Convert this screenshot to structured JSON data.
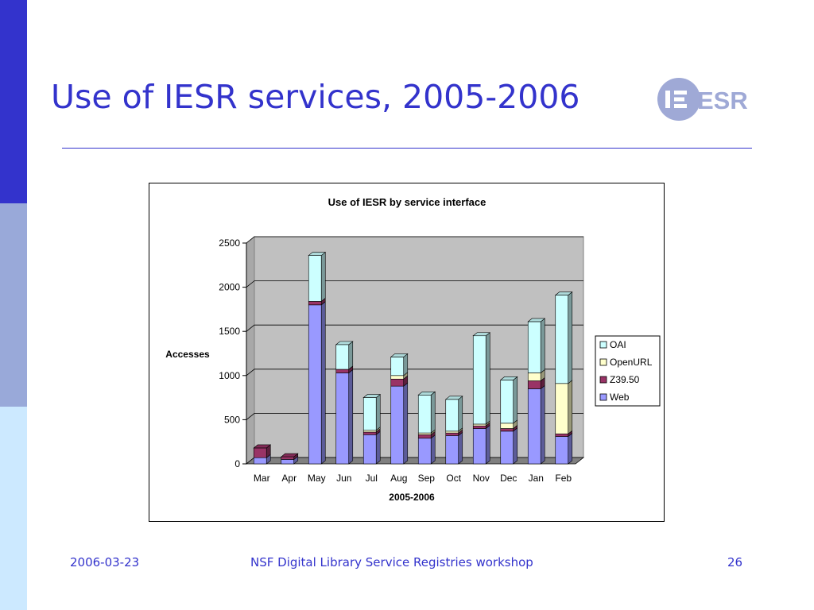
{
  "slide": {
    "title": "Use of IESR services, 2005-2006",
    "logo_text": "ESR"
  },
  "footer": {
    "date": "2006-03-23",
    "center": "NSF Digital Library Service Registries workshop",
    "page": "26"
  },
  "colors": {
    "accent": "#3333cc",
    "sidebar": [
      "#3333cc",
      "#99a9d9",
      "#cce9ff"
    ],
    "plot_wall": "#c0c0c0",
    "floor": "#808080"
  },
  "chart_data": {
    "type": "bar",
    "stacked": true,
    "three_d": true,
    "title": "Use of IESR by service interface",
    "xlabel": "2005-2006",
    "ylabel": "Accesses",
    "ylim": [
      0,
      2500
    ],
    "yticks": [
      "0",
      "500",
      "1000",
      "1500",
      "2000",
      "2500"
    ],
    "grid": true,
    "legend_position": "right",
    "categories": [
      "Mar",
      "Apr",
      "May",
      "Jun",
      "Jul",
      "Aug",
      "Sep",
      "Oct",
      "Nov",
      "Dec",
      "Jan",
      "Feb"
    ],
    "series": [
      {
        "name": "Web",
        "color": "#9999ff",
        "values": [
          70,
          50,
          1800,
          1030,
          330,
          880,
          290,
          320,
          400,
          370,
          850,
          310
        ]
      },
      {
        "name": "Z39.50",
        "color": "#993366",
        "values": [
          110,
          30,
          40,
          40,
          30,
          80,
          40,
          30,
          30,
          30,
          90,
          30
        ]
      },
      {
        "name": "OpenURL",
        "color": "#ffffcc",
        "values": [
          0,
          0,
          0,
          0,
          20,
          40,
          20,
          20,
          20,
          60,
          90,
          570
        ]
      },
      {
        "name": "OAI",
        "color": "#ccffff",
        "values": [
          0,
          0,
          520,
          280,
          370,
          210,
          430,
          360,
          1000,
          490,
          580,
          1000
        ]
      }
    ]
  }
}
